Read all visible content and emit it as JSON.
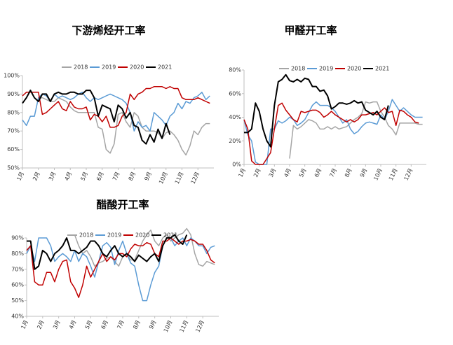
{
  "chart_data": [
    {
      "type": "line",
      "title": "下游烯烃开工率",
      "x": [
        0,
        1,
        2,
        3,
        4,
        5,
        6,
        7,
        8,
        9,
        10,
        11,
        12,
        13,
        14,
        15,
        16,
        17,
        18,
        19,
        20,
        21,
        22,
        23,
        24,
        25,
        26,
        27,
        28,
        29,
        30,
        31,
        32,
        33,
        34,
        35,
        36,
        37,
        38,
        39,
        40,
        41,
        42,
        43,
        44,
        45,
        46,
        47
      ],
      "xlim": [
        0,
        48
      ],
      "xticks": [
        {
          "value": 0,
          "label": "1月"
        },
        {
          "value": 4,
          "label": "2月"
        },
        {
          "value": 8,
          "label": "3月"
        },
        {
          "value": 12,
          "label": "4月"
        },
        {
          "value": 16,
          "label": "5月"
        },
        {
          "value": 20,
          "label": "6月"
        },
        {
          "value": 24,
          "label": "7月"
        },
        {
          "value": 28,
          "label": "8月"
        },
        {
          "value": 32,
          "label": "9月"
        },
        {
          "value": 36,
          "label": "10月"
        },
        {
          "value": 40,
          "label": "11月"
        },
        {
          "value": 44,
          "label": "12月"
        }
      ],
      "ylim": [
        50,
        100
      ],
      "yticks": [
        {
          "value": 50,
          "label": "50%"
        },
        {
          "value": 60,
          "label": "60%"
        },
        {
          "value": 70,
          "label": "70%"
        },
        {
          "value": 80,
          "label": "80%"
        },
        {
          "value": 90,
          "label": "90%"
        },
        {
          "value": 100,
          "label": "100%"
        }
      ],
      "series": [
        {
          "name": "2018",
          "color": "#a5a5a5",
          "values": [
            null,
            null,
            null,
            null,
            88,
            88,
            87,
            86,
            86,
            88,
            87,
            86,
            83,
            81,
            80,
            80,
            80,
            80,
            80,
            72,
            71,
            60,
            58,
            63,
            79,
            80,
            75,
            72,
            80,
            78,
            72,
            70,
            70,
            70,
            69,
            66,
            69,
            70,
            68,
            65,
            60,
            57,
            62,
            70,
            68,
            72,
            74,
            74
          ]
        },
        {
          "name": "2019",
          "color": "#5b9bd5",
          "values": [
            76,
            73,
            78,
            78,
            88,
            90,
            89,
            86,
            90,
            88,
            89,
            88,
            87,
            88,
            90,
            91,
            88,
            86,
            88,
            87,
            88,
            89,
            90,
            89,
            88,
            87,
            85,
            80,
            70,
            75,
            72,
            73,
            70,
            80,
            78,
            76,
            73,
            78,
            80,
            85,
            82,
            86,
            85,
            88,
            89,
            91,
            87,
            89
          ]
        },
        {
          "name": "2020",
          "color": "#c00000",
          "values": [
            89,
            91,
            91,
            91,
            91,
            79,
            80,
            82,
            84,
            86,
            82,
            81,
            86,
            83,
            82,
            82,
            83,
            76,
            79,
            78,
            75,
            78,
            72,
            72,
            73,
            78,
            80,
            90,
            87,
            90,
            91,
            93,
            93,
            94,
            94,
            94,
            93,
            94,
            93,
            93,
            88,
            87,
            87,
            87,
            88,
            87,
            86,
            85
          ]
        },
        {
          "name": "2021",
          "color": "#000000",
          "values": [
            85,
            88,
            92,
            88,
            86,
            90,
            90,
            86,
            90,
            91,
            90,
            90,
            91,
            91,
            90,
            90,
            92,
            92,
            88,
            78,
            84,
            83,
            82,
            75,
            84,
            82,
            77,
            80,
            73,
            72,
            65,
            63,
            68,
            64,
            71,
            66,
            74,
            68,
            null,
            null,
            null,
            null,
            null,
            null,
            null,
            null,
            null,
            null
          ]
        }
      ]
    },
    {
      "type": "line",
      "title": "甲醛开工率",
      "x": [
        0,
        1,
        2,
        3,
        4,
        5,
        6,
        7,
        8,
        9,
        10,
        11,
        12,
        13,
        14,
        15,
        16,
        17,
        18,
        19,
        20,
        21,
        22,
        23,
        24,
        25,
        26,
        27,
        28,
        29,
        30,
        31,
        32,
        33,
        34,
        35,
        36,
        37,
        38,
        39,
        40,
        41,
        42,
        43,
        44,
        45,
        46,
        47
      ],
      "xlim": [
        0,
        48
      ],
      "xticks": [
        {
          "value": 0,
          "label": "1月"
        },
        {
          "value": 4,
          "label": "2月"
        },
        {
          "value": 8,
          "label": "3月"
        },
        {
          "value": 12,
          "label": "4月"
        },
        {
          "value": 16,
          "label": "5月"
        },
        {
          "value": 20,
          "label": "6月"
        },
        {
          "value": 24,
          "label": "7月"
        },
        {
          "value": 28,
          "label": "8月"
        },
        {
          "value": 32,
          "label": "9月"
        },
        {
          "value": 36,
          "label": "10月"
        },
        {
          "value": 40,
          "label": "11月"
        },
        {
          "value": 44,
          "label": "12月"
        }
      ],
      "ylim": [
        0,
        80
      ],
      "yticks": [
        {
          "value": 0,
          "label": "0%"
        },
        {
          "value": 20,
          "label": "20%"
        },
        {
          "value": 40,
          "label": "40%"
        },
        {
          "value": 60,
          "label": "60%"
        },
        {
          "value": 80,
          "label": "80%"
        }
      ],
      "series": [
        {
          "name": "2018",
          "color": "#a5a5a5",
          "values": [
            null,
            null,
            null,
            null,
            null,
            null,
            null,
            null,
            null,
            null,
            null,
            null,
            5,
            33,
            30,
            32,
            35,
            38,
            37,
            35,
            30,
            30,
            32,
            30,
            32,
            30,
            31,
            32,
            35,
            38,
            40,
            43,
            53,
            52,
            53,
            53,
            45,
            40,
            33,
            30,
            25,
            35,
            35,
            35,
            35,
            35,
            34,
            34
          ]
        },
        {
          "name": "2019",
          "color": "#5b9bd5",
          "values": [
            38,
            25,
            20,
            2,
            0,
            0,
            0,
            30,
            30,
            37,
            35,
            37,
            40,
            38,
            33,
            35,
            38,
            44,
            50,
            53,
            50,
            50,
            50,
            48,
            45,
            40,
            35,
            38,
            30,
            26,
            28,
            32,
            35,
            36,
            35,
            34,
            42,
            38,
            45,
            55,
            50,
            45,
            48,
            45,
            42,
            40,
            40,
            40
          ]
        },
        {
          "name": "2020",
          "color": "#c00000",
          "values": [
            38,
            30,
            3,
            0,
            0,
            0,
            5,
            10,
            30,
            50,
            52,
            46,
            42,
            38,
            36,
            45,
            44,
            45,
            46,
            46,
            44,
            40,
            42,
            45,
            42,
            40,
            38,
            36,
            38,
            36,
            38,
            42,
            42,
            43,
            44,
            42,
            45,
            48,
            44,
            45,
            33,
            46,
            45,
            42,
            40,
            36,
            35,
            null
          ]
        },
        {
          "name": "2021",
          "color": "#000000",
          "values": [
            27,
            27,
            30,
            52,
            45,
            30,
            20,
            15,
            50,
            70,
            72,
            76,
            71,
            70,
            72,
            70,
            73,
            72,
            66,
            66,
            62,
            63,
            58,
            47,
            49,
            52,
            52,
            51,
            52,
            54,
            52,
            53,
            46,
            44,
            42,
            45,
            40,
            38,
            50,
            null,
            null,
            null,
            null,
            null,
            null,
            null,
            null,
            null
          ]
        }
      ]
    },
    {
      "type": "line",
      "title": "醋酸开工率",
      "x": [
        0,
        1,
        2,
        3,
        4,
        5,
        6,
        7,
        8,
        9,
        10,
        11,
        12,
        13,
        14,
        15,
        16,
        17,
        18,
        19,
        20,
        21,
        22,
        23,
        24,
        25,
        26,
        27,
        28,
        29,
        30,
        31,
        32,
        33,
        34,
        35,
        36,
        37,
        38,
        39,
        40,
        41,
        42,
        43,
        44,
        45,
        46,
        47
      ],
      "xlim": [
        0,
        48
      ],
      "xticks": [
        {
          "value": 0,
          "label": "1月"
        },
        {
          "value": 4,
          "label": "2月"
        },
        {
          "value": 8,
          "label": "3月"
        },
        {
          "value": 12,
          "label": "4月"
        },
        {
          "value": 16,
          "label": "5月"
        },
        {
          "value": 20,
          "label": "6月"
        },
        {
          "value": 24,
          "label": "7月"
        },
        {
          "value": 28,
          "label": "8月"
        },
        {
          "value": 32,
          "label": "9月"
        },
        {
          "value": 36,
          "label": "10月"
        },
        {
          "value": 40,
          "label": "11月"
        },
        {
          "value": 44,
          "label": "12月"
        }
      ],
      "ylim": [
        40,
        90
      ],
      "yticks": [
        {
          "value": 40,
          "label": "40%"
        },
        {
          "value": 50,
          "label": "50%"
        },
        {
          "value": 60,
          "label": "60%"
        },
        {
          "value": 70,
          "label": "70%"
        },
        {
          "value": 80,
          "label": "80%"
        },
        {
          "value": 90,
          "label": "90%"
        }
      ],
      "series": [
        {
          "name": "2018",
          "color": "#a5a5a5",
          "values": [
            null,
            null,
            null,
            null,
            null,
            null,
            null,
            null,
            null,
            null,
            null,
            null,
            92,
            85,
            80,
            82,
            78,
            72,
            74,
            75,
            77,
            78,
            75,
            72,
            78,
            80,
            76,
            76,
            82,
            88,
            92,
            95,
            88,
            85,
            90,
            92,
            88,
            90,
            92,
            93,
            96,
            92,
            80,
            73,
            72,
            75,
            74,
            73
          ]
        },
        {
          "name": "2019",
          "color": "#5b9bd5",
          "values": [
            80,
            85,
            75,
            90,
            90,
            90,
            85,
            75,
            78,
            80,
            78,
            75,
            82,
            75,
            80,
            78,
            72,
            65,
            75,
            85,
            87,
            84,
            73,
            82,
            88,
            80,
            74,
            72,
            60,
            50,
            50,
            60,
            68,
            72,
            85,
            90,
            90,
            85,
            88,
            90,
            85,
            90,
            88,
            85,
            85,
            80,
            84,
            85
          ]
        },
        {
          "name": "2020",
          "color": "#c00000",
          "values": [
            82,
            85,
            62,
            60,
            60,
            68,
            68,
            62,
            70,
            75,
            76,
            62,
            58,
            52,
            60,
            72,
            65,
            70,
            75,
            80,
            75,
            78,
            76,
            80,
            80,
            78,
            83,
            86,
            85,
            85,
            87,
            86,
            80,
            78,
            88,
            88,
            90,
            88,
            86,
            88,
            88,
            89,
            88,
            86,
            86,
            82,
            76,
            74
          ]
        },
        {
          "name": "2021",
          "color": "#000000",
          "values": [
            88,
            88,
            70,
            72,
            82,
            80,
            75,
            80,
            82,
            85,
            90,
            82,
            82,
            80,
            82,
            84,
            88,
            88,
            85,
            80,
            78,
            82,
            85,
            80,
            78,
            80,
            78,
            75,
            79,
            77,
            75,
            78,
            80,
            75,
            85,
            90,
            90,
            92,
            88,
            86,
            92,
            null,
            null,
            null,
            null,
            null,
            null,
            null
          ]
        }
      ]
    }
  ]
}
